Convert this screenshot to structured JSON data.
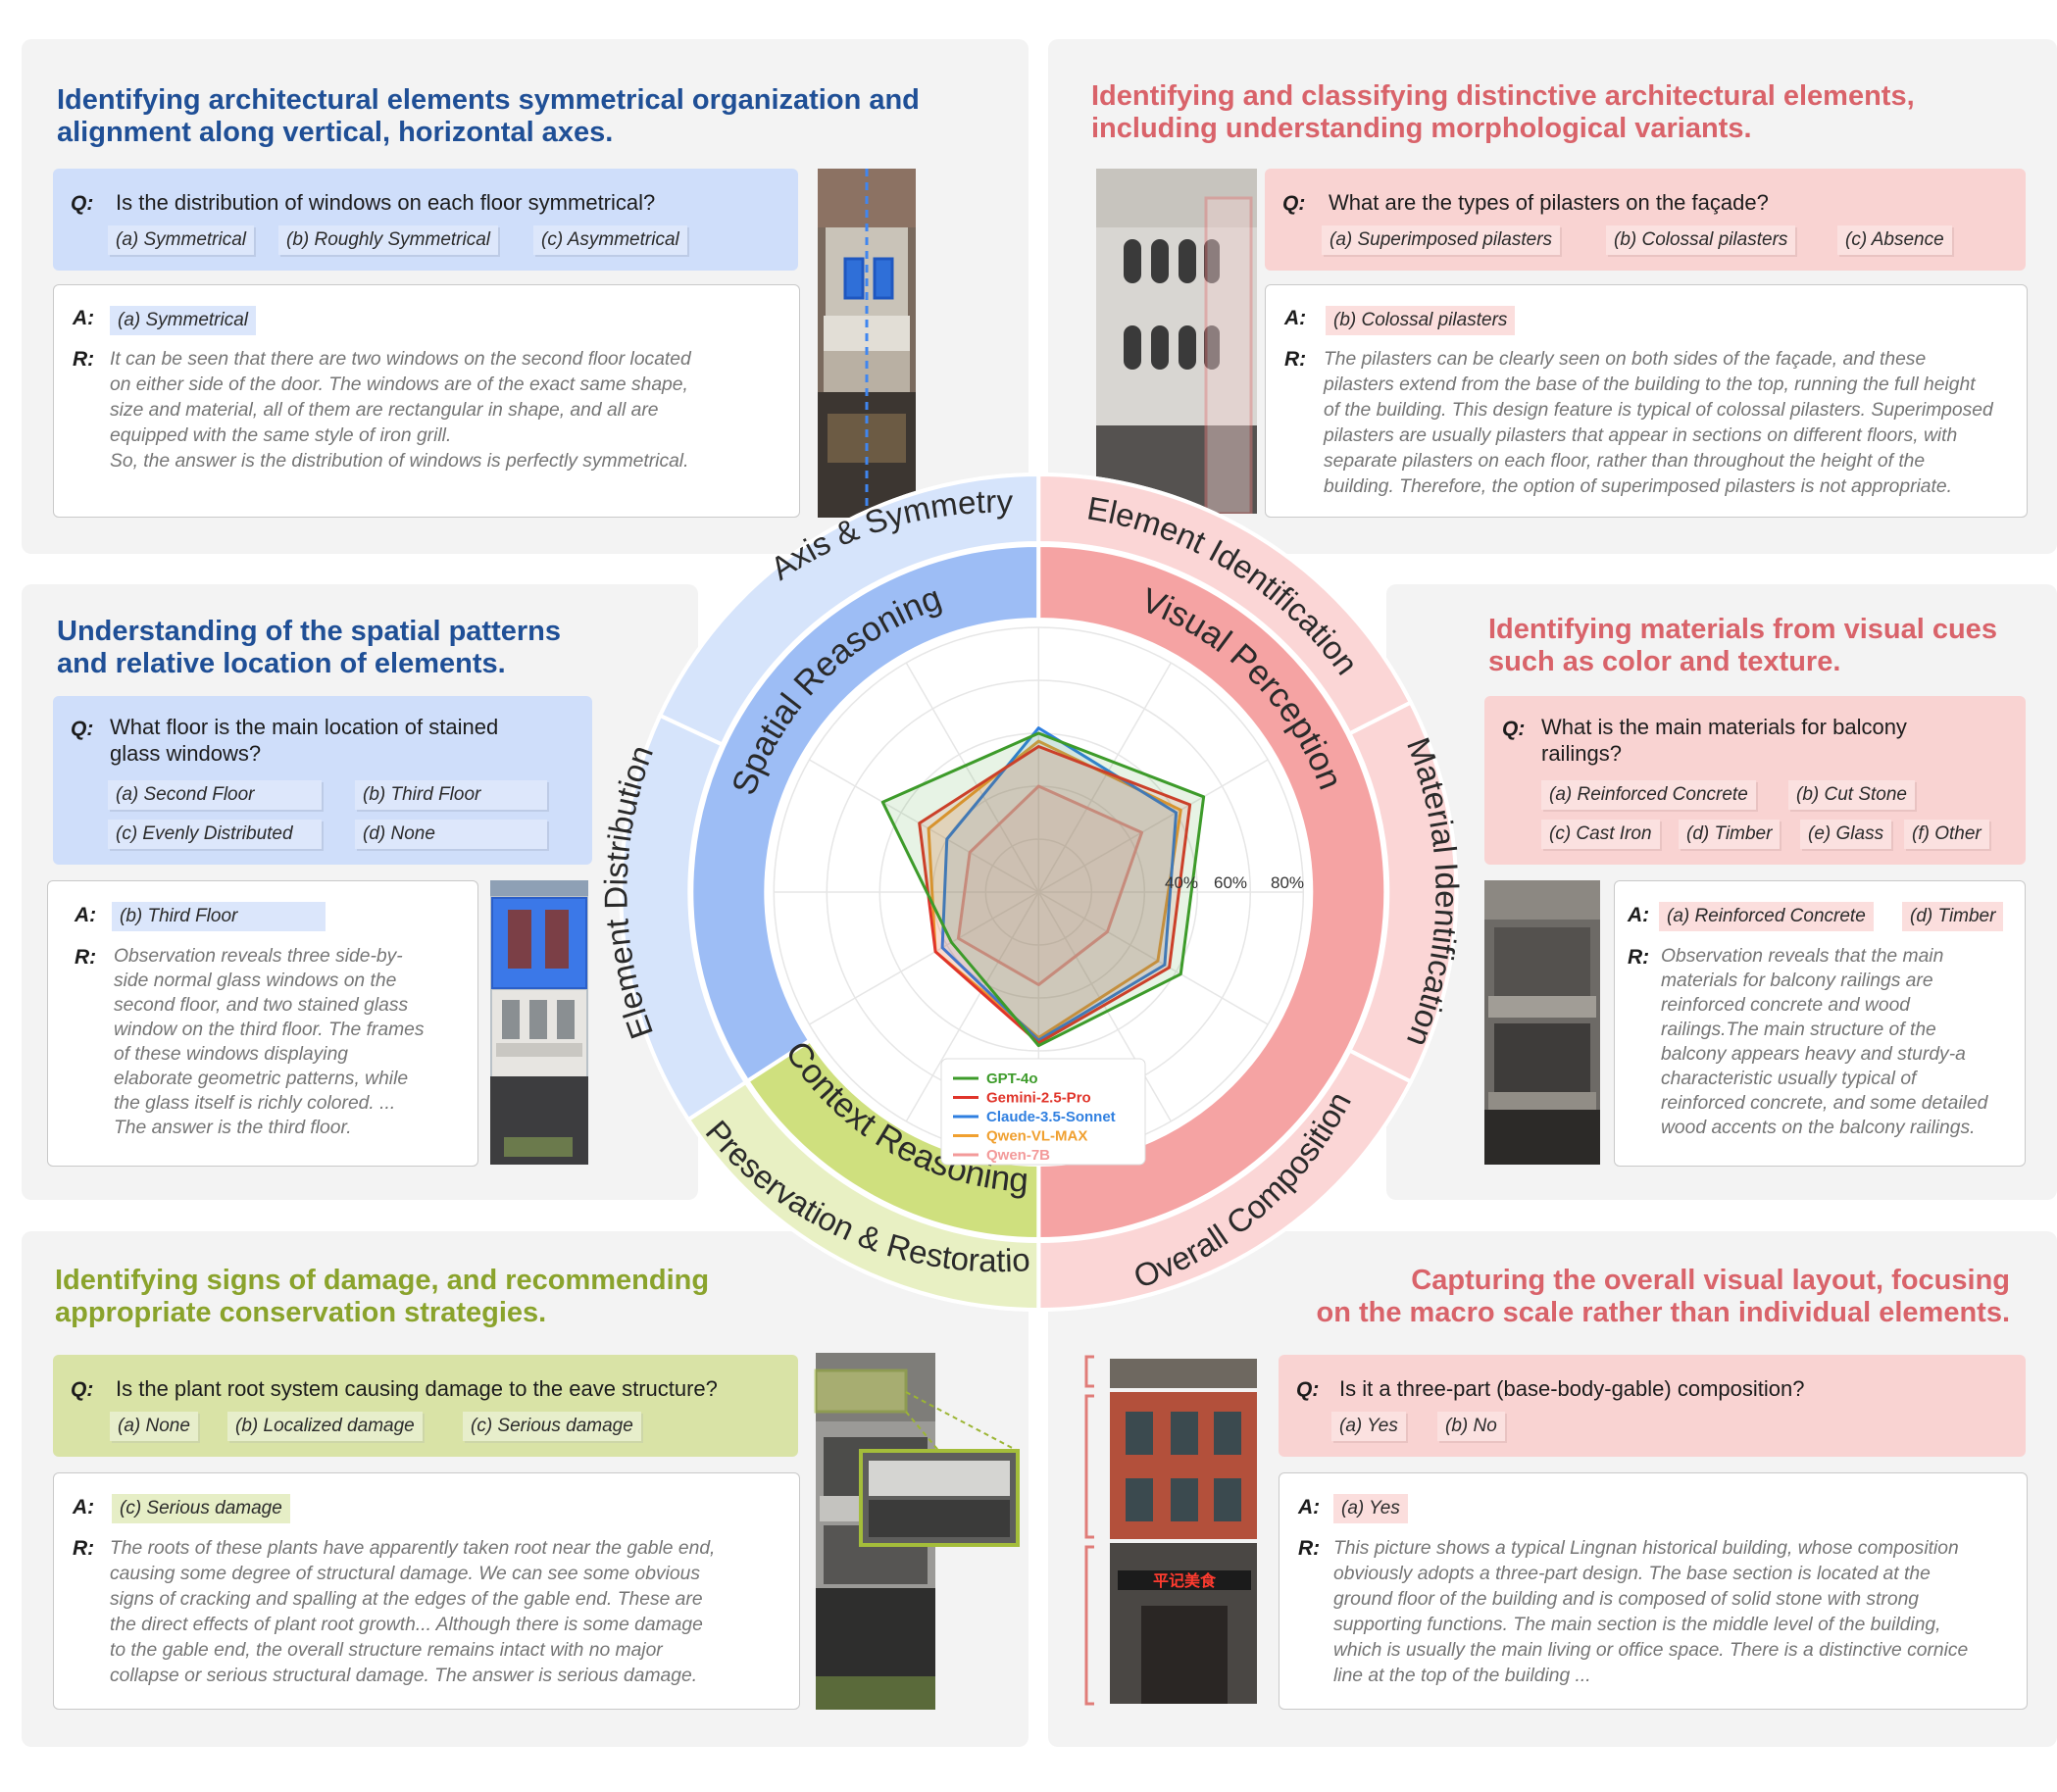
{
  "panels": {
    "symmetry": {
      "title_lines": [
        "Identifying architectural elements symmetrical organization and",
        "alignment along vertical, horizontal axes."
      ],
      "q_label": "Q:",
      "question": "Is the distribution of windows on each floor symmetrical?",
      "options": [
        "(a) Symmetrical",
        "(b) Roughly Symmetrical",
        "(c) Asymmetrical"
      ],
      "a_label": "A:",
      "answers": [
        "(a) Symmetrical"
      ],
      "r_label": "R:",
      "reasoning": [
        "It can be seen that there are two windows on the second floor located",
        "on either side of the door. The windows are of the exact same shape,",
        "size and material, all of them are rectangular in shape, and all are",
        "equipped with the same style of iron grill.",
        "So, the answer is the distribution of windows is perfectly symmetrical."
      ]
    },
    "pilasters": {
      "title_lines": [
        "Identifying and classifying distinctive architectural elements,",
        "including understanding morphological variants."
      ],
      "q_label": "Q:",
      "question": "What are the types of pilasters on the façade?",
      "options": [
        "(a) Superimposed pilasters",
        "(b) Colossal pilasters",
        "(c) Absence"
      ],
      "a_label": "A:",
      "answers": [
        "(b) Colossal pilasters"
      ],
      "r_label": "R:",
      "reasoning": [
        "The pilasters can be clearly seen on both sides of the façade, and these",
        "pilasters extend from the base of the building to the top, running the full height",
        "of the building. This design feature is typical of colossal pilasters. Superimposed",
        "pilasters are usually pilasters that appear in sections on different floors, with",
        "separate pilasters on each floor, rather than throughout the height of the",
        "building. Therefore, the option of superimposed pilasters is not appropriate."
      ]
    },
    "spatial": {
      "title_lines": [
        "Understanding of the spatial patterns",
        "and relative location of elements."
      ],
      "q_label": "Q:",
      "question_lines": [
        "What floor is the main location of stained",
        "glass windows?"
      ],
      "options": [
        "(a) Second Floor",
        "(b) Third Floor",
        "(c) Evenly Distributed",
        "(d) None"
      ],
      "a_label": "A:",
      "answers": [
        "(b) Third Floor"
      ],
      "r_label": "R:",
      "reasoning": [
        "Observation reveals three side-by-",
        "side normal glass windows on the",
        "second floor, and two stained glass",
        "window on the third floor. The frames",
        "of these windows displaying",
        "elaborate geometric patterns, while",
        "the glass itself is richly colored. ...",
        "The answer is the third floor."
      ]
    },
    "materials": {
      "title_lines": [
        "Identifying materials from visual cues",
        "such as color and texture."
      ],
      "q_label": "Q:",
      "question_lines": [
        "What is the main materials for balcony",
        "railings?"
      ],
      "options": [
        "(a) Reinforced Concrete",
        "(b) Cut Stone",
        "(c) Cast Iron",
        "(d) Timber",
        "(e) Glass",
        "(f) Other"
      ],
      "a_label": "A:",
      "answers": [
        "(a) Reinforced Concrete",
        "(d) Timber"
      ],
      "r_label": "R:",
      "reasoning": [
        "Observation reveals that the main",
        "materials for balcony railings are",
        "reinforced concrete and wood",
        "railings.The main structure of the",
        "balcony appears heavy and sturdy-a",
        "characteristic usually typical of",
        "reinforced concrete, and some detailed",
        "wood accents on the balcony railings."
      ]
    },
    "damage": {
      "title_lines": [
        "Identifying signs of damage, and recommending",
        "appropriate conservation strategies."
      ],
      "q_label": "Q:",
      "question": "Is the plant root system causing damage to the eave structure?",
      "options": [
        "(a) None",
        "(b) Localized damage",
        "(c) Serious damage"
      ],
      "a_label": "A:",
      "answers": [
        "(c) Serious damage"
      ],
      "r_label": "R:",
      "reasoning": [
        "The roots of these plants have apparently taken root near the gable end,",
        "causing some degree of structural damage. We can see some obvious",
        "signs of cracking and spalling at the edges of the gable end. These are",
        "the direct effects of plant root growth... Although there is some damage",
        "to the gable end, the overall structure remains intact with no major",
        "collapse or serious structural damage. The answer is serious damage."
      ]
    },
    "composition": {
      "title_lines": [
        "Capturing the overall visual layout, focusing",
        "on the macro scale rather than individual elements."
      ],
      "q_label": "Q:",
      "question": "Is it a three-part (base-body-gable) composition?",
      "options": [
        "(a) Yes",
        "(b) No"
      ],
      "a_label": "A:",
      "answers": [
        "(a) Yes"
      ],
      "r_label": "R:",
      "reasoning": [
        "This picture shows a typical Lingnan historical building, whose composition",
        "obviously adopts a three-part design. The base section is located at the",
        "ground floor of the building and is composed of solid stone with strong",
        "supporting functions. The main section is the middle level of the building,",
        "which is usually the main living or office space. There is a distinctive cornice",
        "line at the top of the building ..."
      ]
    }
  },
  "photo_texts": {
    "shop_sign": "平记美食"
  },
  "wheel": {
    "inner_labels": [
      "Spatial Reasoning",
      "Visual Perception",
      "Context Reasoning"
    ],
    "outer_labels": [
      "Axis & Symmetry",
      "Element Identification",
      "Material Identification",
      "Overall Composition",
      "Preservation & Restoration",
      "Element Distribution"
    ],
    "colors": {
      "spatial": "#9dbdf5",
      "spatial_light": "#d6e4fb",
      "visual": "#f5a3a3",
      "visual_light": "#fbd6d6",
      "context": "#cfe07e",
      "context_light": "#e8f0c3"
    }
  },
  "chart_data": {
    "type": "radar",
    "axes": [
      "Element Identification",
      "Material Identification",
      "Overall Composition",
      "Preservation & Restoration",
      "Element Distribution",
      "Axis & Symmetry"
    ],
    "ticks": [
      "40%",
      "60%",
      "80%"
    ],
    "rmax": 100,
    "series": [
      {
        "name": "GPT-4o",
        "color": "#3d9b2a",
        "values": [
          72,
          62,
          58,
          38,
          68,
          60
        ]
      },
      {
        "name": "Gemini-2.5-Pro",
        "color": "#e0342a",
        "values": [
          66,
          57,
          57,
          45,
          52,
          55
        ]
      },
      {
        "name": "Claude-3.5-Sonnet",
        "color": "#2f7fe0",
        "values": [
          60,
          55,
          56,
          42,
          40,
          62
        ]
      },
      {
        "name": "Qwen-VL-MAX",
        "color": "#f0a030",
        "values": [
          62,
          52,
          55,
          45,
          48,
          57
        ]
      },
      {
        "name": "Qwen-7B",
        "color": "#f39a9a",
        "values": [
          45,
          30,
          35,
          35,
          30,
          40
        ]
      }
    ]
  }
}
